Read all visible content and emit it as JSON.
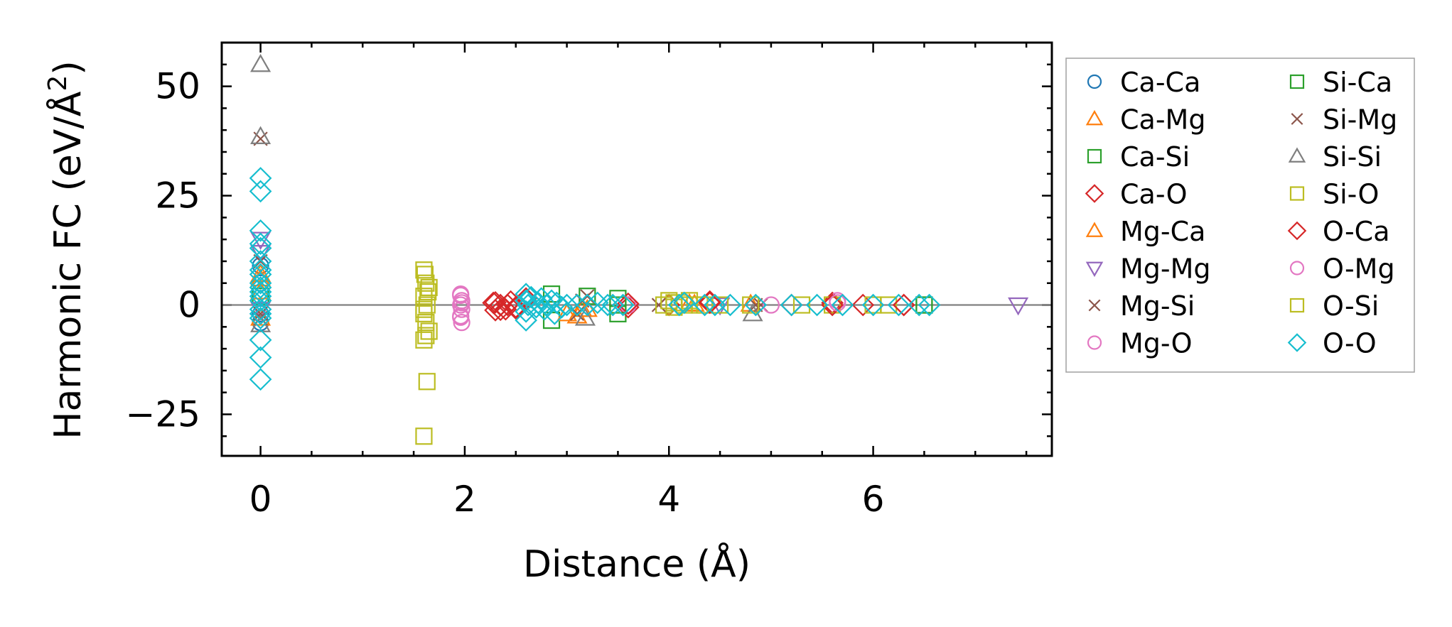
{
  "chart_data": {
    "type": "scatter",
    "title": "",
    "xlabel": "Distance (Å)",
    "ylabel_main": "Harmonic FC (eV/Å",
    "ylabel_sup": "2",
    "ylabel_close": ")",
    "xlim": [
      -0.38,
      7.75
    ],
    "ylim": [
      -34.5,
      60.0
    ],
    "xticks": [
      0,
      2,
      4,
      6
    ],
    "xtick_labels": [
      "0",
      "2",
      "4",
      "6"
    ],
    "yticks": [
      -25,
      0,
      25,
      50
    ],
    "ytick_labels": [
      "−25",
      "0",
      "25",
      "50"
    ],
    "x_minor_step": 0.5,
    "y_minor_step": 5,
    "zero_line": 0,
    "legend_position": "outside-right",
    "series": [
      {
        "name": "Ca-Ca",
        "marker": "circle",
        "color": "#1f77b4",
        "points": [
          [
            0,
            9
          ],
          [
            0,
            5
          ],
          [
            0,
            -2
          ],
          [
            0,
            -4
          ]
        ]
      },
      {
        "name": "Ca-Mg",
        "marker": "triangle-up",
        "color": "#ff7f0e",
        "points": [
          [
            0,
            7
          ],
          [
            0,
            3
          ],
          [
            0,
            -3
          ],
          [
            3.1,
            -2.5
          ],
          [
            3.2,
            -1
          ],
          [
            4.2,
            0.3
          ],
          [
            4.8,
            0.2
          ]
        ]
      },
      {
        "name": "Ca-Si",
        "marker": "square",
        "color": "#2ca02c",
        "points": [
          [
            0,
            2
          ],
          [
            2.85,
            2.5
          ],
          [
            2.85,
            -3.5
          ],
          [
            3.2,
            2
          ],
          [
            3.5,
            1.5
          ],
          [
            3.5,
            -2
          ],
          [
            6.5,
            0
          ]
        ]
      },
      {
        "name": "Ca-O",
        "marker": "diamond",
        "color": "#d62728",
        "points": [
          [
            2.28,
            0.5
          ],
          [
            2.3,
            -1.2
          ],
          [
            2.35,
            0
          ],
          [
            2.4,
            -1
          ],
          [
            2.45,
            0.8
          ],
          [
            2.5,
            -0.5
          ],
          [
            2.6,
            1.5
          ],
          [
            3.6,
            -0.5
          ],
          [
            4.0,
            0
          ],
          [
            4.4,
            0.8
          ],
          [
            5.2,
            0
          ],
          [
            5.6,
            0.5
          ],
          [
            5.9,
            0
          ],
          [
            6.3,
            0
          ]
        ]
      },
      {
        "name": "Mg-Ca",
        "marker": "triangle-up",
        "color": "#ff7f0e",
        "points": [
          [
            0,
            6
          ],
          [
            3.0,
            -2
          ],
          [
            3.15,
            -1
          ],
          [
            4.25,
            0.2
          ]
        ]
      },
      {
        "name": "Mg-Mg",
        "marker": "triangle-down",
        "color": "#9467bd",
        "points": [
          [
            0,
            15
          ],
          [
            0,
            12
          ],
          [
            0,
            -1
          ],
          [
            4.5,
            0
          ],
          [
            7.42,
            0
          ]
        ]
      },
      {
        "name": "Mg-Si",
        "marker": "x",
        "color": "#8c564b",
        "points": [
          [
            0,
            10
          ],
          [
            0,
            38
          ],
          [
            0,
            -3
          ],
          [
            3.2,
            2
          ],
          [
            3.1,
            -2
          ],
          [
            3.9,
            0
          ],
          [
            4.9,
            0
          ]
        ]
      },
      {
        "name": "Mg-O",
        "marker": "circle",
        "color": "#e377c2",
        "points": [
          [
            1.96,
            2.5
          ],
          [
            1.97,
            1
          ],
          [
            1.96,
            0
          ],
          [
            1.97,
            -1
          ],
          [
            1.96,
            -2.5
          ],
          [
            1.97,
            -4
          ],
          [
            3.6,
            0
          ],
          [
            5.0,
            0
          ],
          [
            5.65,
            1
          ]
        ]
      },
      {
        "name": "Si-Ca",
        "marker": "square",
        "color": "#2ca02c",
        "points": [
          [
            3.5,
            0
          ],
          [
            6.5,
            0
          ]
        ]
      },
      {
        "name": "Si-Mg",
        "marker": "x",
        "color": "#8c564b",
        "points": [
          [
            0,
            -2
          ],
          [
            3.15,
            1
          ],
          [
            4.85,
            0
          ]
        ]
      },
      {
        "name": "Si-Si",
        "marker": "triangle-up",
        "color": "#7f7f7f",
        "points": [
          [
            0,
            55
          ],
          [
            0,
            38.5
          ],
          [
            0,
            -4.5
          ],
          [
            3.18,
            -3
          ],
          [
            4.82,
            -2
          ]
        ]
      },
      {
        "name": "Si-O",
        "marker": "square",
        "color": "#bcbd22",
        "points": [
          [
            1.6,
            8
          ],
          [
            1.62,
            5
          ],
          [
            1.65,
            4
          ],
          [
            1.6,
            2
          ],
          [
            1.63,
            0
          ],
          [
            1.6,
            -2
          ],
          [
            1.62,
            -4
          ],
          [
            1.65,
            -6
          ],
          [
            1.6,
            -8
          ],
          [
            1.6,
            -30
          ],
          [
            1.63,
            -17.5
          ],
          [
            3.95,
            0
          ],
          [
            4.0,
            1
          ],
          [
            4.05,
            -0.5
          ],
          [
            4.1,
            0.5
          ],
          [
            4.15,
            0
          ],
          [
            4.2,
            1
          ],
          [
            4.35,
            0
          ],
          [
            4.5,
            0
          ],
          [
            4.8,
            0
          ],
          [
            5.3,
            0
          ],
          [
            5.6,
            0
          ],
          [
            6.0,
            0
          ],
          [
            6.15,
            0
          ]
        ]
      },
      {
        "name": "O-Ca",
        "marker": "diamond",
        "color": "#d62728",
        "points": [
          [
            2.3,
            0.6
          ],
          [
            2.35,
            -1.1
          ],
          [
            2.42,
            0
          ],
          [
            2.5,
            -0.8
          ],
          [
            3.6,
            0.3
          ],
          [
            4.4,
            0.5
          ],
          [
            5.6,
            0
          ],
          [
            6.3,
            0
          ]
        ]
      },
      {
        "name": "O-Mg",
        "marker": "circle",
        "color": "#e377c2",
        "points": [
          [
            1.96,
            2.2
          ],
          [
            1.97,
            0.5
          ],
          [
            1.96,
            -2.8
          ],
          [
            5.65,
            0.5
          ]
        ]
      },
      {
        "name": "O-Si",
        "marker": "square",
        "color": "#bcbd22",
        "points": [
          [
            1.61,
            7
          ],
          [
            1.64,
            3
          ],
          [
            1.6,
            -1
          ],
          [
            1.62,
            -7
          ],
          [
            4.05,
            0.5
          ],
          [
            4.3,
            0
          ]
        ]
      },
      {
        "name": "O-O",
        "marker": "diamond",
        "color": "#17becf",
        "points": [
          [
            0,
            29
          ],
          [
            0,
            26
          ],
          [
            0,
            17
          ],
          [
            0,
            14
          ],
          [
            0,
            13
          ],
          [
            0,
            10
          ],
          [
            0,
            8
          ],
          [
            0,
            7
          ],
          [
            0,
            5
          ],
          [
            0,
            4
          ],
          [
            0,
            3
          ],
          [
            0,
            2
          ],
          [
            0,
            1
          ],
          [
            0,
            -1
          ],
          [
            0,
            -2
          ],
          [
            0,
            -3
          ],
          [
            0,
            -8
          ],
          [
            0,
            -12
          ],
          [
            0,
            -17
          ],
          [
            2.6,
            2.5
          ],
          [
            2.6,
            1
          ],
          [
            2.62,
            0
          ],
          [
            2.6,
            -1.5
          ],
          [
            2.6,
            -3.5
          ],
          [
            2.65,
            1.8
          ],
          [
            2.7,
            -0.5
          ],
          [
            2.72,
            0.5
          ],
          [
            2.75,
            1.5
          ],
          [
            2.78,
            -1
          ],
          [
            2.8,
            0
          ],
          [
            2.85,
            1
          ],
          [
            2.88,
            -2
          ],
          [
            2.9,
            0.5
          ],
          [
            2.95,
            -0.5
          ],
          [
            3.0,
            0
          ],
          [
            3.1,
            0
          ],
          [
            3.2,
            0
          ],
          [
            3.3,
            0.5
          ],
          [
            3.4,
            0
          ],
          [
            3.45,
            0
          ],
          [
            3.55,
            0
          ],
          [
            4.1,
            0
          ],
          [
            4.15,
            0.5
          ],
          [
            4.35,
            0
          ],
          [
            4.45,
            0
          ],
          [
            4.6,
            0
          ],
          [
            4.85,
            0
          ],
          [
            5.2,
            0
          ],
          [
            5.45,
            0
          ],
          [
            5.7,
            0
          ],
          [
            6.0,
            0
          ],
          [
            6.25,
            0
          ],
          [
            6.45,
            0
          ],
          [
            6.55,
            0
          ]
        ]
      }
    ]
  }
}
